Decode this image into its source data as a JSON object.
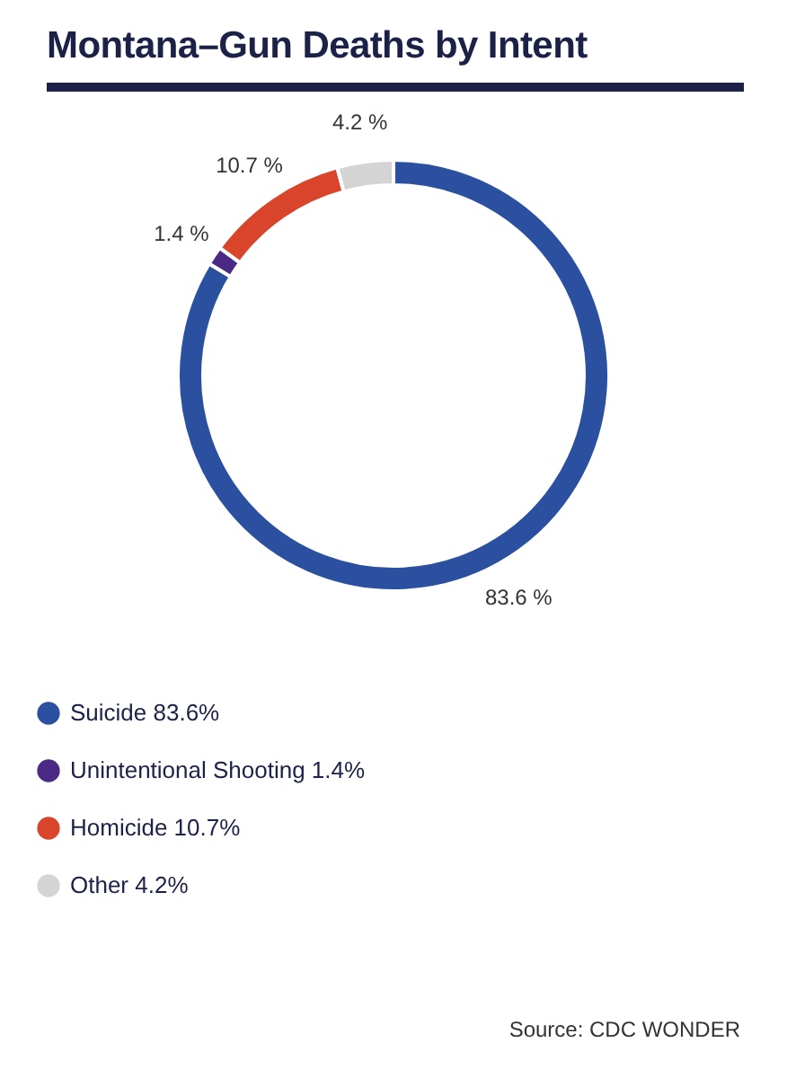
{
  "chart_data": {
    "type": "donut",
    "title": "Montana–Gun Deaths by Intent",
    "categories": [
      "Suicide",
      "Unintentional Shooting",
      "Homicide",
      "Other"
    ],
    "values": [
      83.6,
      1.4,
      10.7,
      4.2
    ],
    "colors": [
      "#2b50a0",
      "#4b2a86",
      "#d9452b",
      "#d4d4d4"
    ],
    "value_labels": [
      "83.6 %",
      "1.4 %",
      "10.7 %",
      "4.2 %"
    ],
    "legend": "bottom",
    "annotations": [
      "Source: CDC WONDER"
    ]
  }
}
